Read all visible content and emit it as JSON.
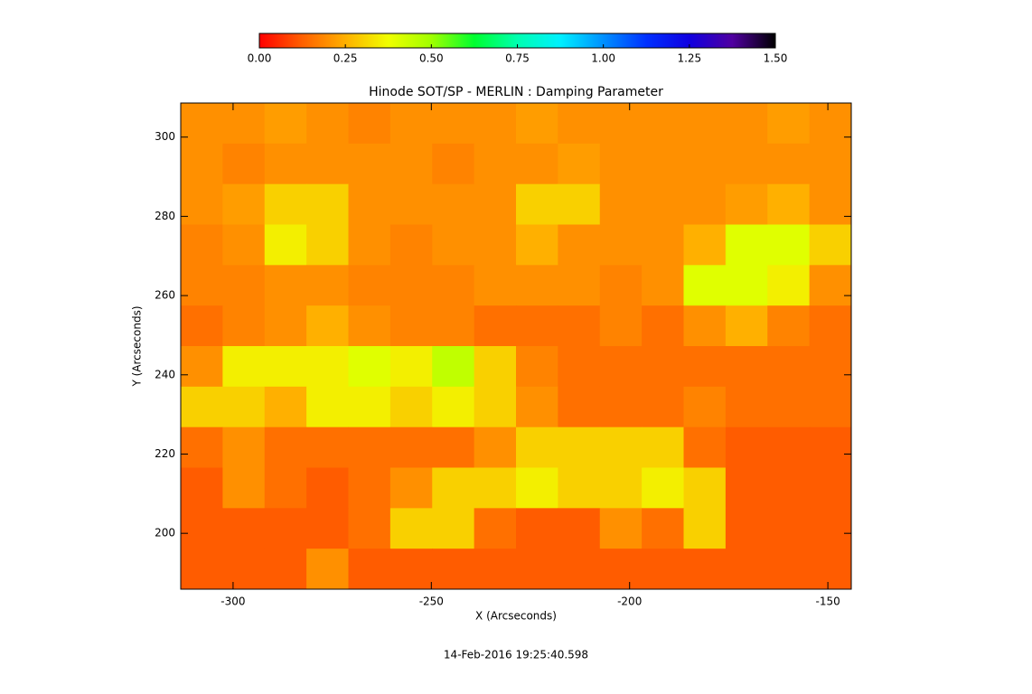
{
  "chart_data": {
    "type": "heatmap",
    "title": "Hinode SOT/SP - MERLIN : Damping Parameter",
    "xlabel": "X (Arcseconds)",
    "ylabel": "Y (Arcseconds)",
    "footer": "14-Feb-2016 19:25:40.598",
    "xlim": [
      -313.2,
      -144.1
    ],
    "ylim": [
      185.9,
      308.6
    ],
    "xticks": [
      -300,
      -250,
      -200,
      -150
    ],
    "yticks": [
      200,
      220,
      240,
      260,
      280,
      300
    ],
    "zlim": [
      0,
      1.5
    ],
    "colorbar_ticks": [
      {
        "value": 0,
        "label": "0.00"
      },
      {
        "value": 0.25,
        "label": "0.25"
      },
      {
        "value": 0.5,
        "label": "0.50"
      },
      {
        "value": 0.75,
        "label": "0.75"
      },
      {
        "value": 1,
        "label": "1.00"
      },
      {
        "value": 1.25,
        "label": "1.25"
      },
      {
        "value": 1.5,
        "label": "1.50"
      }
    ],
    "colormap": [
      "#ff0000",
      "#ff6000",
      "#ffb000",
      "#f0ff00",
      "#a0ff00",
      "#00ff30",
      "#00ffb0",
      "#00f0ff",
      "#0090ff",
      "#0030ff",
      "#1000e0",
      "#5000a0",
      "#000000"
    ],
    "z": [
      [
        0.2,
        0.2,
        0.22,
        0.2,
        0.18,
        0.2,
        0.2,
        0.2,
        0.22,
        0.2,
        0.2,
        0.2,
        0.2,
        0.2,
        0.22,
        0.2
      ],
      [
        0.2,
        0.18,
        0.2,
        0.2,
        0.2,
        0.2,
        0.18,
        0.2,
        0.2,
        0.22,
        0.2,
        0.2,
        0.2,
        0.2,
        0.2,
        0.2
      ],
      [
        0.2,
        0.22,
        0.3,
        0.3,
        0.2,
        0.2,
        0.2,
        0.2,
        0.3,
        0.3,
        0.2,
        0.2,
        0.2,
        0.22,
        0.25,
        0.2
      ],
      [
        0.18,
        0.2,
        0.35,
        0.3,
        0.2,
        0.18,
        0.2,
        0.2,
        0.25,
        0.2,
        0.2,
        0.2,
        0.25,
        0.4,
        0.4,
        0.3
      ],
      [
        0.18,
        0.18,
        0.2,
        0.2,
        0.18,
        0.18,
        0.18,
        0.2,
        0.2,
        0.2,
        0.18,
        0.2,
        0.4,
        0.4,
        0.35,
        0.2
      ],
      [
        0.15,
        0.18,
        0.2,
        0.25,
        0.2,
        0.18,
        0.18,
        0.15,
        0.15,
        0.15,
        0.18,
        0.15,
        0.2,
        0.25,
        0.18,
        0.15
      ],
      [
        0.2,
        0.35,
        0.35,
        0.35,
        0.4,
        0.35,
        0.45,
        0.3,
        0.18,
        0.15,
        0.15,
        0.15,
        0.15,
        0.15,
        0.15,
        0.15
      ],
      [
        0.3,
        0.3,
        0.25,
        0.35,
        0.35,
        0.3,
        0.35,
        0.3,
        0.2,
        0.15,
        0.15,
        0.15,
        0.18,
        0.15,
        0.15,
        0.15
      ],
      [
        0.15,
        0.2,
        0.15,
        0.15,
        0.15,
        0.15,
        0.15,
        0.2,
        0.3,
        0.3,
        0.3,
        0.3,
        0.15,
        0.12,
        0.12,
        0.12
      ],
      [
        0.12,
        0.2,
        0.15,
        0.12,
        0.15,
        0.2,
        0.3,
        0.3,
        0.35,
        0.3,
        0.3,
        0.35,
        0.3,
        0.12,
        0.12,
        0.12
      ],
      [
        0.12,
        0.12,
        0.12,
        0.12,
        0.15,
        0.3,
        0.3,
        0.15,
        0.12,
        0.12,
        0.2,
        0.15,
        0.3,
        0.12,
        0.12,
        0.12
      ],
      [
        0.12,
        0.12,
        0.12,
        0.2,
        0.12,
        0.12,
        0.12,
        0.12,
        0.12,
        0.12,
        0.12,
        0.12,
        0.12,
        0.12,
        0.12,
        0.12
      ]
    ]
  }
}
